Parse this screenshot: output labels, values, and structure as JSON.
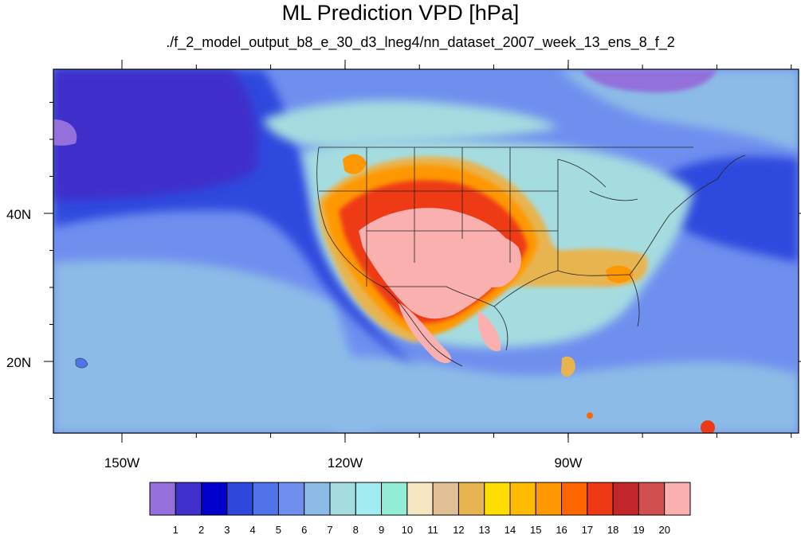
{
  "title": "ML Prediction VPD [hPa]",
  "subtitle": "./f_2_model_output_b8_e_30_d3_lneg4/nn_dataset_2007_week_13_ens_8_f_2",
  "map": {
    "lon_range": [
      -160,
      -62
    ],
    "lat_range": [
      10,
      58
    ],
    "lon_labels": [
      "150W",
      "120W",
      "90W"
    ],
    "lat_labels": [
      "40N",
      "20N"
    ],
    "field_description_colors": {
      "ocean_far": "#3d37c8",
      "ocean_mid": "#4a6be0",
      "land_moist": "#9fdce6",
      "arid_core": "#f8b2b2"
    }
  },
  "colorbar": {
    "labels": [
      "1",
      "2",
      "3",
      "4",
      "5",
      "6",
      "7",
      "8",
      "9",
      "10",
      "11",
      "12",
      "13",
      "14",
      "15",
      "16",
      "17",
      "18",
      "19",
      "20"
    ],
    "colors": [
      "#9370db",
      "#3f2fcb",
      "#0000cd",
      "#2e48de",
      "#4f73e8",
      "#6f8fef",
      "#8cbbe8",
      "#a5dce0",
      "#a0ecf0",
      "#93ecd6",
      "#f5e5c0",
      "#e0c094",
      "#e8b450",
      "#ffdd00",
      "#ffbb00",
      "#ff9800",
      "#ff6600",
      "#ee3a14",
      "#c2262a",
      "#d24f50",
      "#fbb0b0"
    ]
  }
}
